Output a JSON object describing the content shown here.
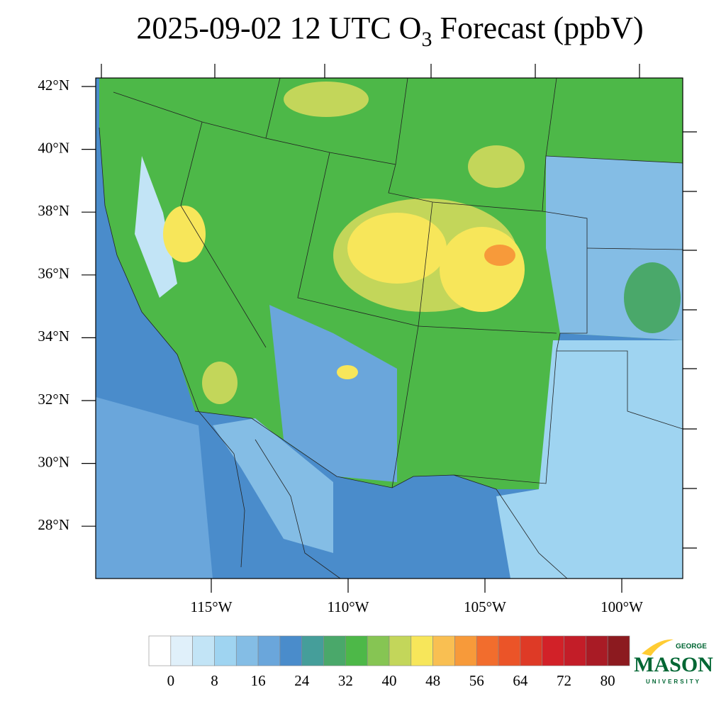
{
  "title": {
    "main": "2025-09-02 12 UTC O",
    "subscript": "3",
    "rest": " Forecast (ppbV)"
  },
  "map": {
    "lat_labels": [
      "42°N",
      "40°N",
      "38°N",
      "36°N",
      "34°N",
      "32°N",
      "30°N",
      "28°N"
    ],
    "lon_labels": [
      "115°W",
      "110°W",
      "105°W",
      "100°W"
    ]
  },
  "colorbar": {
    "colors": [
      "#ffffff",
      "#e0f0fa",
      "#c2e4f6",
      "#9fd4f1",
      "#84bde5",
      "#6aa6db",
      "#4a8ccb",
      "#459e9a",
      "#4aa86a",
      "#4db848",
      "#86c553",
      "#c3d65a",
      "#f7e65a",
      "#f9bf52",
      "#f79a3a",
      "#f26d2d",
      "#eb5428",
      "#de3a26",
      "#d22128",
      "#c31d28",
      "#a91b25",
      "#8c1a1f"
    ],
    "ticks": [
      0,
      8,
      16,
      24,
      32,
      40,
      48,
      56,
      64,
      72,
      80
    ]
  },
  "logo": {
    "top": "GEORGE",
    "main": "MASON",
    "bottom": "UNIVERSITY"
  }
}
